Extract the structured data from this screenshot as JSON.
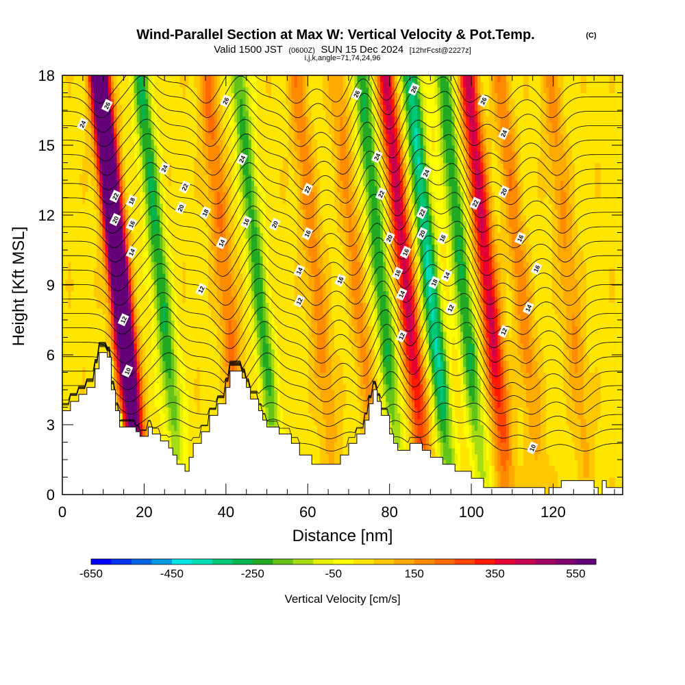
{
  "title": {
    "main": "Wind-Parallel Section at Max W: Vertical Velocity & Pot.Temp.",
    "copyright": "(C)",
    "valid_prefix": "Valid 1500 JST",
    "valid_utc": "(0600Z)",
    "valid_date": "SUN 15 Dec 2024",
    "forecast": "[12hrFcst@2227z]",
    "indices": "i,j,k,angle=71,74,24,96"
  },
  "chart_data": {
    "type": "heatmap",
    "title": "Wind-Parallel Section at Max W: Vertical Velocity & Pot.Temp.",
    "xlabel": "Distance [nm]",
    "ylabel": "Height [Kft MSL]",
    "xlim": [
      0,
      137
    ],
    "ylim": [
      0,
      18
    ],
    "x_ticks": [
      "0",
      "20",
      "40",
      "60",
      "80",
      "100",
      "120"
    ],
    "x_tick_values": [
      0,
      20,
      40,
      60,
      80,
      100,
      120
    ],
    "y_ticks": [
      "0",
      "3",
      "6",
      "9",
      "12",
      "15",
      "18"
    ],
    "y_tick_values": [
      0,
      3,
      6,
      9,
      12,
      15,
      18
    ],
    "grid": false,
    "colorbar": {
      "label": "Vertical Velocity [cm/s]",
      "tick_labels": [
        "-650",
        "-450",
        "-250",
        "-50",
        "150",
        "350",
        "550"
      ],
      "tick_values": [
        -650,
        -450,
        -250,
        -50,
        150,
        350,
        550
      ],
      "colors": [
        "#0000ff",
        "#0033ee",
        "#0066e6",
        "#0099e6",
        "#00e6e6",
        "#00dcb4",
        "#00c878",
        "#00b450",
        "#22aa22",
        "#66c418",
        "#a6dc14",
        "#e6f000",
        "#ffff00",
        "#ffe600",
        "#ffc800",
        "#ffaa00",
        "#ff8c00",
        "#ff6a00",
        "#ff4400",
        "#ff1a00",
        "#e60033",
        "#c80050",
        "#a00064",
        "#82006e",
        "#640078"
      ]
    },
    "waves": [
      {
        "x": 14,
        "w": 950,
        "sign": 1
      },
      {
        "x": 24,
        "w": -280,
        "sign": -1
      },
      {
        "x": 40,
        "w": 180,
        "sign": 1
      },
      {
        "x": 48,
        "w": -250,
        "sign": -1
      },
      {
        "x": 62,
        "w": 150,
        "sign": 1
      },
      {
        "x": 72,
        "w": 130,
        "sign": 1
      },
      {
        "x": 78,
        "w": -280,
        "sign": -1
      },
      {
        "x": 84,
        "w": 380,
        "sign": 1
      },
      {
        "x": 90,
        "w": -380,
        "sign": -1
      },
      {
        "x": 98,
        "w": -280,
        "sign": -1
      },
      {
        "x": 104,
        "w": 380,
        "sign": 1
      },
      {
        "x": 112,
        "w": 150,
        "sign": 1
      },
      {
        "x": 124,
        "w": 130,
        "sign": 1
      }
    ],
    "terrain_kft": [
      [
        0,
        3.6
      ],
      [
        2,
        3.6
      ],
      [
        2,
        4.0
      ],
      [
        4,
        4.0
      ],
      [
        4,
        4.3
      ],
      [
        6,
        4.3
      ],
      [
        6,
        4.6
      ],
      [
        8,
        4.6
      ],
      [
        8,
        5.4
      ],
      [
        9,
        5.4
      ],
      [
        9,
        6.1
      ],
      [
        11,
        6.1
      ],
      [
        11,
        5.9
      ],
      [
        12,
        5.9
      ],
      [
        12,
        4.5
      ],
      [
        13,
        4.5
      ],
      [
        13,
        3.6
      ],
      [
        14,
        3.6
      ],
      [
        14,
        2.9
      ],
      [
        18,
        2.9
      ],
      [
        18,
        2.7
      ],
      [
        19,
        2.7
      ],
      [
        19,
        2.5
      ],
      [
        21,
        2.5
      ],
      [
        21,
        2.9
      ],
      [
        22,
        2.9
      ],
      [
        22,
        2.6
      ],
      [
        24,
        2.6
      ],
      [
        24,
        2.3
      ],
      [
        26,
        2.3
      ],
      [
        26,
        2.0
      ],
      [
        27,
        2.0
      ],
      [
        27,
        1.7
      ],
      [
        28,
        1.7
      ],
      [
        28,
        1.3
      ],
      [
        30,
        1.3
      ],
      [
        30,
        1.0
      ],
      [
        31,
        1.0
      ],
      [
        31,
        1.6
      ],
      [
        32,
        1.6
      ],
      [
        32,
        2.2
      ],
      [
        34,
        2.2
      ],
      [
        34,
        2.7
      ],
      [
        36,
        2.7
      ],
      [
        36,
        3.4
      ],
      [
        38,
        3.4
      ],
      [
        38,
        3.9
      ],
      [
        40,
        3.9
      ],
      [
        40,
        4.6
      ],
      [
        41,
        4.6
      ],
      [
        41,
        5.3
      ],
      [
        44,
        5.3
      ],
      [
        44,
        5.0
      ],
      [
        45,
        5.0
      ],
      [
        45,
        4.6
      ],
      [
        46,
        4.6
      ],
      [
        46,
        4.1
      ],
      [
        48,
        4.1
      ],
      [
        48,
        3.6
      ],
      [
        49,
        3.6
      ],
      [
        49,
        3.2
      ],
      [
        50,
        3.2
      ],
      [
        50,
        2.9
      ],
      [
        53,
        2.9
      ],
      [
        53,
        2.6
      ],
      [
        56,
        2.6
      ],
      [
        56,
        2.2
      ],
      [
        58,
        2.2
      ],
      [
        58,
        1.7
      ],
      [
        61,
        1.7
      ],
      [
        61,
        1.3
      ],
      [
        68,
        1.3
      ],
      [
        68,
        1.7
      ],
      [
        70,
        1.7
      ],
      [
        70,
        2.2
      ],
      [
        72,
        2.2
      ],
      [
        72,
        2.6
      ],
      [
        74,
        2.6
      ],
      [
        74,
        3.2
      ],
      [
        75,
        3.2
      ],
      [
        75,
        3.9
      ],
      [
        76,
        3.9
      ],
      [
        76,
        4.5
      ],
      [
        77,
        4.5
      ],
      [
        77,
        4.0
      ],
      [
        78,
        4.0
      ],
      [
        78,
        3.4
      ],
      [
        80,
        3.4
      ],
      [
        80,
        2.6
      ],
      [
        81,
        2.6
      ],
      [
        81,
        2.2
      ],
      [
        82,
        2.2
      ],
      [
        82,
        1.9
      ],
      [
        85,
        1.9
      ],
      [
        85,
        2.2
      ],
      [
        88,
        2.2
      ],
      [
        88,
        1.9
      ],
      [
        90,
        1.9
      ],
      [
        90,
        1.6
      ],
      [
        93,
        1.6
      ],
      [
        93,
        1.3
      ],
      [
        96,
        1.3
      ],
      [
        96,
        1.0
      ],
      [
        100,
        1.0
      ],
      [
        100,
        0.7
      ],
      [
        103,
        0.7
      ],
      [
        103,
        0.3
      ],
      [
        118,
        0.3
      ],
      [
        118,
        0.0
      ],
      [
        119,
        0.0
      ],
      [
        119,
        0.3
      ],
      [
        122,
        0.3
      ],
      [
        122,
        0.6
      ],
      [
        130,
        0.6
      ],
      [
        130,
        0.3
      ],
      [
        131,
        0.3
      ],
      [
        131,
        0.0
      ],
      [
        132,
        0.0
      ],
      [
        132,
        0.6
      ],
      [
        133,
        0.6
      ],
      [
        133,
        0.3
      ],
      [
        137,
        0.3
      ]
    ],
    "contours": {
      "variable": "Potential Temperature",
      "labels": [
        {
          "x": 11,
          "y": 16.7,
          "text": "26"
        },
        {
          "x": 5,
          "y": 15.9,
          "text": "24"
        },
        {
          "x": 40,
          "y": 16.9,
          "text": "26"
        },
        {
          "x": 72,
          "y": 17.2,
          "text": "26"
        },
        {
          "x": 86,
          "y": 17.4,
          "text": "26"
        },
        {
          "x": 103,
          "y": 16.9,
          "text": "26"
        },
        {
          "x": 25,
          "y": 14.0,
          "text": "24"
        },
        {
          "x": 44,
          "y": 14.4,
          "text": "24"
        },
        {
          "x": 77,
          "y": 14.5,
          "text": "24"
        },
        {
          "x": 89,
          "y": 13.8,
          "text": "24"
        },
        {
          "x": 108,
          "y": 15.5,
          "text": "24"
        },
        {
          "x": 30,
          "y": 13.2,
          "text": "22"
        },
        {
          "x": 60,
          "y": 13.1,
          "text": "22"
        },
        {
          "x": 13,
          "y": 12.8,
          "text": "22"
        },
        {
          "x": 78,
          "y": 12.9,
          "text": "22"
        },
        {
          "x": 88,
          "y": 12.1,
          "text": "22"
        },
        {
          "x": 101,
          "y": 12.5,
          "text": "22"
        },
        {
          "x": 17,
          "y": 12.6,
          "text": "18"
        },
        {
          "x": 29,
          "y": 12.3,
          "text": "20"
        },
        {
          "x": 13,
          "y": 11.8,
          "text": "20"
        },
        {
          "x": 52,
          "y": 11.6,
          "text": "20"
        },
        {
          "x": 80,
          "y": 11.0,
          "text": "20"
        },
        {
          "x": 88,
          "y": 11.2,
          "text": "20"
        },
        {
          "x": 108,
          "y": 13.0,
          "text": "20"
        },
        {
          "x": 35,
          "y": 12.1,
          "text": "18"
        },
        {
          "x": 17,
          "y": 11.6,
          "text": "16"
        },
        {
          "x": 45,
          "y": 11.7,
          "text": "16"
        },
        {
          "x": 60,
          "y": 11.2,
          "text": "16"
        },
        {
          "x": 84,
          "y": 10.4,
          "text": "16"
        },
        {
          "x": 93,
          "y": 11.0,
          "text": "16"
        },
        {
          "x": 112,
          "y": 11.0,
          "text": "16"
        },
        {
          "x": 17,
          "y": 10.4,
          "text": "14"
        },
        {
          "x": 39,
          "y": 10.8,
          "text": "14"
        },
        {
          "x": 58,
          "y": 9.6,
          "text": "14"
        },
        {
          "x": 82,
          "y": 9.5,
          "text": "16"
        },
        {
          "x": 68,
          "y": 9.2,
          "text": "16"
        },
        {
          "x": 94,
          "y": 9.4,
          "text": "14"
        },
        {
          "x": 116,
          "y": 9.7,
          "text": "16"
        },
        {
          "x": 91,
          "y": 9.1,
          "text": "18"
        },
        {
          "x": 34,
          "y": 8.8,
          "text": "12"
        },
        {
          "x": 58,
          "y": 8.3,
          "text": "12"
        },
        {
          "x": 83,
          "y": 8.6,
          "text": "14"
        },
        {
          "x": 95,
          "y": 8.0,
          "text": "12"
        },
        {
          "x": 114,
          "y": 8.0,
          "text": "14"
        },
        {
          "x": 15,
          "y": 7.5,
          "text": "12"
        },
        {
          "x": 83,
          "y": 6.8,
          "text": "12"
        },
        {
          "x": 108,
          "y": 7.0,
          "text": "12"
        },
        {
          "x": 16,
          "y": 5.3,
          "text": "10"
        },
        {
          "x": 115,
          "y": 2.0,
          "text": "10"
        }
      ]
    }
  }
}
